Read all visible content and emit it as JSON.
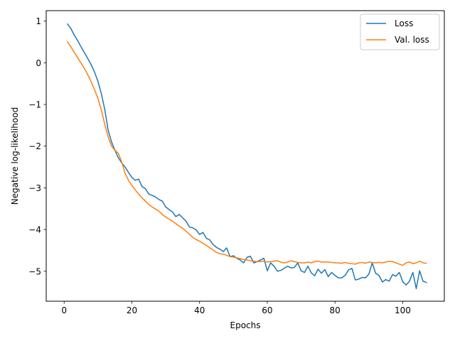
{
  "chart_data": {
    "type": "line",
    "title": "",
    "xlabel": "Epochs",
    "ylabel": "Negative log-likelihood",
    "xlim": [
      -5.3,
      112.3
    ],
    "ylim": [
      -5.72,
      1.25
    ],
    "xticks": [
      0,
      20,
      40,
      60,
      80,
      100
    ],
    "yticks": [
      1,
      0,
      -1,
      -2,
      -3,
      -4,
      -5
    ],
    "xtick_labels": [
      "0",
      "20",
      "40",
      "60",
      "80",
      "100"
    ],
    "ytick_labels": [
      "1",
      "0",
      "−1",
      "−2",
      "−3",
      "−4",
      "−5"
    ],
    "grid": false,
    "legend_position": "top-right",
    "series": [
      {
        "name": "Loss",
        "color": "#1f77b4",
        "x": [
          1,
          2,
          3,
          4,
          5,
          6,
          7,
          8,
          9,
          10,
          11,
          12,
          13,
          14,
          15,
          16,
          17,
          18,
          19,
          20,
          21,
          22,
          23,
          24,
          25,
          26,
          27,
          28,
          29,
          30,
          31,
          32,
          33,
          34,
          35,
          36,
          37,
          38,
          39,
          40,
          41,
          42,
          43,
          44,
          45,
          46,
          47,
          48,
          49,
          50,
          51,
          52,
          53,
          54,
          55,
          56,
          57,
          58,
          59,
          60,
          61,
          62,
          63,
          64,
          65,
          66,
          67,
          68,
          69,
          70,
          71,
          72,
          73,
          74,
          75,
          76,
          77,
          78,
          79,
          80,
          81,
          82,
          83,
          84,
          85,
          86,
          87,
          88,
          89,
          90,
          91,
          92,
          93,
          94,
          95,
          96,
          97,
          98,
          99,
          100,
          101,
          102,
          103,
          104,
          105,
          106,
          107
        ],
        "values": [
          0.93,
          0.82,
          0.66,
          0.53,
          0.38,
          0.24,
          0.1,
          -0.05,
          -0.23,
          -0.45,
          -0.75,
          -1.12,
          -1.62,
          -1.9,
          -2.1,
          -2.28,
          -2.4,
          -2.5,
          -2.63,
          -2.75,
          -2.82,
          -2.79,
          -2.97,
          -3.02,
          -3.15,
          -3.18,
          -3.22,
          -3.28,
          -3.32,
          -3.46,
          -3.52,
          -3.58,
          -3.69,
          -3.64,
          -3.72,
          -3.8,
          -3.94,
          -3.96,
          -4.01,
          -4.12,
          -4.07,
          -4.21,
          -4.25,
          -4.36,
          -4.43,
          -4.47,
          -4.53,
          -4.44,
          -4.65,
          -4.63,
          -4.69,
          -4.73,
          -4.8,
          -4.67,
          -4.64,
          -4.8,
          -4.77,
          -4.73,
          -4.69,
          -4.99,
          -4.8,
          -4.88,
          -5.0,
          -4.98,
          -4.93,
          -4.88,
          -4.92,
          -4.91,
          -4.8,
          -4.99,
          -5.03,
          -4.88,
          -5.04,
          -5.11,
          -4.95,
          -5.05,
          -4.96,
          -5.13,
          -5.03,
          -5.1,
          -5.16,
          -5.16,
          -5.1,
          -4.97,
          -4.93,
          -5.21,
          -5.19,
          -5.15,
          -5.16,
          -5.07,
          -4.8,
          -5.05,
          -5.1,
          -5.26,
          -5.2,
          -5.24,
          -5.08,
          -5.12,
          -5.03,
          -5.25,
          -5.33,
          -5.24,
          -5.03,
          -5.42,
          -4.99,
          -5.24,
          -5.27
        ]
      },
      {
        "name": "Val. loss",
        "color": "#ff7f0e",
        "x": [
          1,
          2,
          3,
          4,
          5,
          6,
          7,
          8,
          9,
          10,
          11,
          12,
          13,
          14,
          15,
          16,
          17,
          18,
          19,
          20,
          21,
          22,
          23,
          24,
          25,
          26,
          27,
          28,
          29,
          30,
          31,
          32,
          33,
          34,
          35,
          36,
          37,
          38,
          39,
          40,
          41,
          42,
          43,
          44,
          45,
          46,
          47,
          48,
          49,
          50,
          51,
          52,
          53,
          54,
          55,
          56,
          57,
          58,
          59,
          60,
          61,
          62,
          63,
          64,
          65,
          66,
          67,
          68,
          69,
          70,
          71,
          72,
          73,
          74,
          75,
          76,
          77,
          78,
          79,
          80,
          81,
          82,
          83,
          84,
          85,
          86,
          87,
          88,
          89,
          90,
          91,
          92,
          93,
          94,
          95,
          96,
          97,
          98,
          99,
          100,
          101,
          102,
          103,
          104,
          105,
          106,
          107
        ],
        "values": [
          0.5,
          0.38,
          0.25,
          0.12,
          -0.01,
          -0.14,
          -0.29,
          -0.46,
          -0.65,
          -0.86,
          -1.14,
          -1.48,
          -1.78,
          -2.0,
          -2.1,
          -2.17,
          -2.38,
          -2.65,
          -2.82,
          -2.94,
          -3.05,
          -3.15,
          -3.24,
          -3.32,
          -3.4,
          -3.46,
          -3.51,
          -3.56,
          -3.64,
          -3.7,
          -3.75,
          -3.8,
          -3.86,
          -3.92,
          -3.97,
          -4.04,
          -4.11,
          -4.19,
          -4.24,
          -4.28,
          -4.33,
          -4.38,
          -4.44,
          -4.49,
          -4.55,
          -4.58,
          -4.59,
          -4.62,
          -4.65,
          -4.66,
          -4.68,
          -4.7,
          -4.72,
          -4.73,
          -4.75,
          -4.76,
          -4.77,
          -4.77,
          -4.76,
          -4.78,
          -4.77,
          -4.76,
          -4.75,
          -4.78,
          -4.8,
          -4.78,
          -4.75,
          -4.77,
          -4.79,
          -4.8,
          -4.8,
          -4.78,
          -4.8,
          -4.77,
          -4.76,
          -4.78,
          -4.78,
          -4.78,
          -4.79,
          -4.8,
          -4.8,
          -4.81,
          -4.79,
          -4.81,
          -4.82,
          -4.83,
          -4.8,
          -4.79,
          -4.81,
          -4.78,
          -4.79,
          -4.8,
          -4.79,
          -4.8,
          -4.78,
          -4.76,
          -4.77,
          -4.8,
          -4.83,
          -4.86,
          -4.8,
          -4.78,
          -4.82,
          -4.8,
          -4.76,
          -4.8,
          -4.81
        ]
      }
    ]
  }
}
